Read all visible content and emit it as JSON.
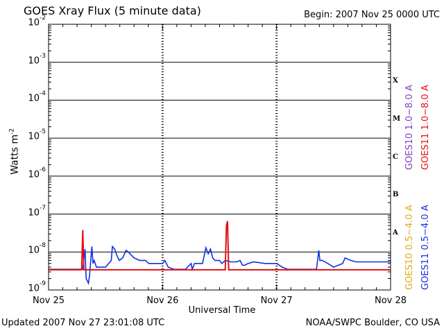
{
  "header": {
    "title": "GOES Xray Flux (5 minute data)",
    "begin": "Begin:  2007 Nov 25 0000 UTC"
  },
  "footer": {
    "updated": "Updated 2007 Nov 27 23:01:08 UTC",
    "credit": "NOAA/SWPC Boulder, CO USA"
  },
  "colors": {
    "goes10_long": "#7f3fbf",
    "goes11_long": "#e01010",
    "goes10_short": "#e6a817",
    "goes11_short": "#1030e0"
  },
  "chart_data": {
    "type": "line",
    "title": "GOES Xray Flux (5 minute data)",
    "xlabel": "Universal Time",
    "ylabel": "Watts m",
    "ylabel_exponent": "-2",
    "yscale": "log",
    "ylim": [
      1e-09,
      0.01
    ],
    "xlim": [
      "2007-11-25",
      "2007-11-28"
    ],
    "x_ticks": [
      "Nov 25",
      "Nov 26",
      "Nov 27",
      "Nov 28"
    ],
    "y_ticks": [
      {
        "base": "10",
        "exp": "-9",
        "value": 1e-09
      },
      {
        "base": "10",
        "exp": "-8",
        "value": 1e-08
      },
      {
        "base": "10",
        "exp": "-7",
        "value": 1e-07
      },
      {
        "base": "10",
        "exp": "-6",
        "value": 1e-06
      },
      {
        "base": "10",
        "exp": "-5",
        "value": 1e-05
      },
      {
        "base": "10",
        "exp": "-4",
        "value": 0.0001
      },
      {
        "base": "10",
        "exp": "-3",
        "value": 0.001
      },
      {
        "base": "10",
        "exp": "-2",
        "value": 0.01
      }
    ],
    "flare_classes": [
      {
        "label": "X",
        "value": 0.0003
      },
      {
        "label": "M",
        "value": 3e-05
      },
      {
        "label": "C",
        "value": 3e-06
      },
      {
        "label": "B",
        "value": 3e-07
      },
      {
        "label": "A",
        "value": 3e-08
      }
    ],
    "legend": [
      "GOES10 1.0−8.0 A",
      "GOES11 1.0−8.0 A",
      "GOES10 0.5−4.0 A",
      "GOES11 0.5−4.0 A"
    ],
    "series": [
      {
        "name": "GOES11 0.5−4.0 A",
        "color": "#1030e0",
        "x_days": [
          0.0,
          0.3,
          0.32,
          0.33,
          0.35,
          0.36,
          0.38,
          0.39,
          0.4,
          0.42,
          0.45,
          0.5,
          0.55,
          0.56,
          0.58,
          0.6,
          0.62,
          0.65,
          0.68,
          0.7,
          0.75,
          0.8,
          0.85,
          0.88,
          1.0,
          1.02,
          1.05,
          1.1,
          1.2,
          1.25,
          1.26,
          1.28,
          1.35,
          1.38,
          1.4,
          1.42,
          1.44,
          1.46,
          1.5,
          1.52,
          1.55,
          1.6,
          1.65,
          1.68,
          1.7,
          1.72,
          1.75,
          1.8,
          1.9,
          2.0,
          2.05,
          2.1,
          2.2,
          2.35,
          2.37,
          2.38,
          2.4,
          2.45,
          2.5,
          2.58,
          2.6,
          2.65,
          2.7,
          2.8,
          2.95,
          3.0
        ],
        "values": [
          3.5e-09,
          3.5e-09,
          1.2e-08,
          2e-09,
          1.5e-09,
          2.5e-09,
          1.4e-08,
          5e-09,
          6e-09,
          4e-09,
          4e-09,
          4e-09,
          6e-09,
          1.4e-08,
          1.2e-08,
          8e-09,
          6e-09,
          7e-09,
          1.1e-08,
          1e-08,
          7e-09,
          6e-09,
          6e-09,
          5e-09,
          5e-09,
          6e-09,
          4e-09,
          3.5e-09,
          3.5e-09,
          5e-09,
          3.5e-09,
          5e-09,
          5e-09,
          1.3e-08,
          9e-09,
          1.2e-08,
          7e-09,
          6e-09,
          6e-09,
          5e-09,
          6e-09,
          5.5e-09,
          5.5e-09,
          6e-09,
          4.5e-09,
          4.5e-09,
          5e-09,
          5.5e-09,
          5e-09,
          5e-09,
          4e-09,
          3.5e-09,
          3.5e-09,
          3.5e-09,
          1.1e-08,
          6e-09,
          6e-09,
          5e-09,
          4e-09,
          5e-09,
          7e-09,
          6e-09,
          5.5e-09,
          5.5e-09,
          5.5e-09,
          5.5e-09
        ]
      },
      {
        "name": "GOES11 1.0−8.0 A",
        "color": "#e01010",
        "x_days": [
          0.0,
          0.29,
          0.3,
          0.31,
          0.32,
          1.5,
          1.55,
          1.56,
          1.57,
          1.58,
          1.6,
          3.0
        ],
        "values": [
          3.4e-09,
          3.4e-09,
          3.8e-08,
          3.4e-09,
          3.4e-09,
          3.4e-09,
          3.4e-09,
          5e-08,
          6.5e-08,
          3.4e-09,
          3.4e-09,
          3.4e-09
        ]
      }
    ]
  }
}
